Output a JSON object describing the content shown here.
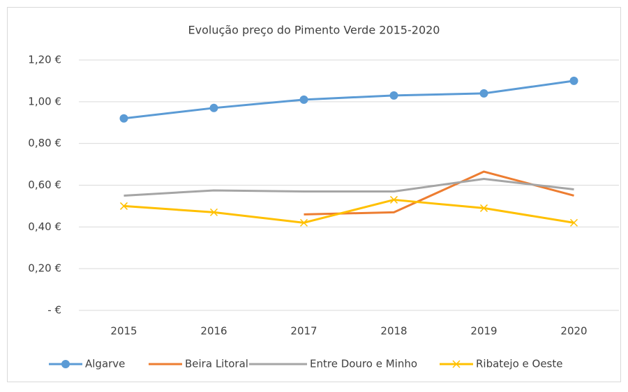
{
  "chart_data": {
    "type": "line",
    "title": "Evolução preço do Pimento Verde 2015-2020",
    "categories": [
      "2015",
      "2016",
      "2017",
      "2018",
      "2019",
      "2020"
    ],
    "series": [
      {
        "name": "Algarve",
        "color": "#5b9bd5",
        "marker": "circle",
        "values": [
          0.92,
          0.97,
          1.01,
          1.03,
          1.04,
          1.1
        ]
      },
      {
        "name": "Beira Litoral",
        "color": "#ed7d31",
        "marker": "none",
        "values": [
          null,
          null,
          0.46,
          0.47,
          0.665,
          0.55
        ]
      },
      {
        "name": "Entre Douro e Minho",
        "color": "#a5a5a5",
        "marker": "none",
        "values": [
          0.55,
          0.575,
          0.57,
          0.57,
          0.63,
          0.58
        ]
      },
      {
        "name": "Ribatejo e Oeste",
        "color": "#ffc000",
        "marker": "x",
        "values": [
          0.5,
          0.47,
          0.42,
          0.53,
          0.49,
          0.42
        ]
      }
    ],
    "ylim": [
      0,
      1.2
    ],
    "yticks": [
      {
        "value": 0,
        "label": "-  €"
      },
      {
        "value": 0.2,
        "label": "0,20 €"
      },
      {
        "value": 0.4,
        "label": "0,40 €"
      },
      {
        "value": 0.6,
        "label": "0,60 €"
      },
      {
        "value": 0.8,
        "label": "0,80 €"
      },
      {
        "value": 1.0,
        "label": "1,00 €"
      },
      {
        "value": 1.2,
        "label": "1,20 €"
      }
    ],
    "grid": true,
    "legend": "bottom"
  }
}
